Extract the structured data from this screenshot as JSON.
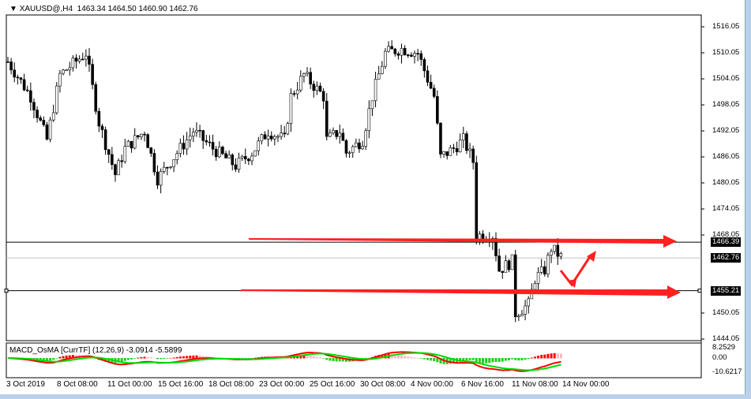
{
  "header": {
    "symbol": "XAUUSD@,H4",
    "ohlc": "1463.34 1464.50 1460.90 1462.76"
  },
  "price_axis": [
    "1516.05",
    "1510.05",
    "1504.05",
    "1498.05",
    "1492.05",
    "1486.05",
    "1480.05",
    "1474.05",
    "1468.05",
    "1450.05",
    "1444.05"
  ],
  "price_axis_values": [
    1516.05,
    1510.05,
    1504.05,
    1498.05,
    1492.05,
    1486.05,
    1480.05,
    1474.05,
    1468.05,
    1450.05,
    1444.05
  ],
  "levels": [
    {
      "label": "1466.39",
      "value": 1466.39,
      "color": "#000000"
    },
    {
      "label": "1462.76",
      "value": 1462.76,
      "color": "#c0c0c0"
    },
    {
      "label": "1455.21",
      "value": 1455.21,
      "color": "#000000"
    }
  ],
  "macd": {
    "label": "MACD_OsMA [CurrTF] (12,26,9) -3.0914 -5.5899",
    "axis": [
      "8.2529",
      "0.00",
      "-10.6217"
    ],
    "colors": {
      "macd": "#ff0000",
      "signal": "#00dd00",
      "hist_up": "#ff0000",
      "hist_down": "#22cc22",
      "hist_light": "#ffb6c1"
    }
  },
  "time_axis": [
    "3 Oct 2019",
    "8 Oct 08:00",
    "11 Oct 00:00",
    "15 Oct 16:00",
    "18 Oct 08:00",
    "23 Oct 00:00",
    "25 Oct 16:00",
    "30 Oct 08:00",
    "4 Nov 00:00",
    "6 Nov 16:00",
    "11 Nov 08:00",
    "14 Nov 00:00"
  ],
  "price_path": [
    [
      0,
      1508
    ],
    [
      7,
      1500
    ],
    [
      12,
      1490
    ],
    [
      16,
      1505
    ],
    [
      24,
      1510
    ],
    [
      28,
      1494
    ],
    [
      33,
      1482
    ],
    [
      36,
      1488
    ],
    [
      42,
      1492
    ],
    [
      46,
      1481
    ],
    [
      51,
      1486
    ],
    [
      57,
      1492
    ],
    [
      63,
      1488
    ],
    [
      70,
      1484
    ],
    [
      75,
      1487
    ],
    [
      80,
      1492
    ],
    [
      85,
      1490
    ],
    [
      87,
      1500
    ],
    [
      91,
      1505
    ],
    [
      97,
      1500
    ],
    [
      98,
      1490
    ],
    [
      102,
      1492
    ],
    [
      104,
      1487
    ],
    [
      109,
      1490
    ],
    [
      112,
      1500
    ],
    [
      116,
      1510
    ],
    [
      121,
      1511
    ],
    [
      126,
      1510
    ],
    [
      131,
      1500
    ],
    [
      133,
      1486
    ],
    [
      137,
      1488
    ],
    [
      140,
      1490
    ],
    [
      143,
      1485
    ],
    [
      144,
      1468
    ],
    [
      149,
      1468
    ],
    [
      151,
      1460
    ],
    [
      155,
      1462
    ],
    [
      156,
      1450
    ],
    [
      160,
      1452
    ],
    [
      162,
      1458
    ],
    [
      165,
      1460
    ],
    [
      167,
      1465
    ],
    [
      170,
      1463
    ]
  ],
  "arrow_color": "#ff2020"
}
